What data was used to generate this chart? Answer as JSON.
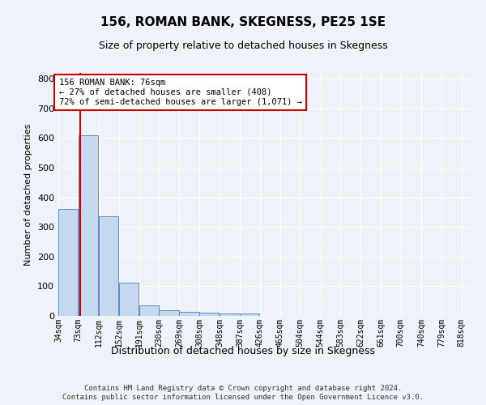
{
  "title": "156, ROMAN BANK, SKEGNESS, PE25 1SE",
  "subtitle": "Size of property relative to detached houses in Skegness",
  "xlabel": "Distribution of detached houses by size in Skegness",
  "ylabel": "Number of detached properties",
  "footer_line1": "Contains HM Land Registry data © Crown copyright and database right 2024.",
  "footer_line2": "Contains public sector information licensed under the Open Government Licence v3.0.",
  "bin_labels": [
    "34sqm",
    "73sqm",
    "112sqm",
    "152sqm",
    "191sqm",
    "230sqm",
    "269sqm",
    "308sqm",
    "348sqm",
    "387sqm",
    "426sqm",
    "465sqm",
    "504sqm",
    "544sqm",
    "583sqm",
    "622sqm",
    "661sqm",
    "700sqm",
    "740sqm",
    "779sqm",
    "818sqm"
  ],
  "bar_values": [
    360,
    610,
    335,
    113,
    36,
    20,
    15,
    10,
    8,
    8,
    0,
    0,
    0,
    0,
    0,
    0,
    0,
    0,
    0,
    0
  ],
  "bar_color": "#c5d8f0",
  "bar_edge_color": "#5a8fc2",
  "property_size": 76,
  "vline_color": "#cc0000",
  "ylim": [
    0,
    820
  ],
  "yticks": [
    0,
    100,
    200,
    300,
    400,
    500,
    600,
    700,
    800
  ],
  "annotation_text": "156 ROMAN BANK: 76sqm\n← 27% of detached houses are smaller (408)\n72% of semi-detached houses are larger (1,071) →",
  "annotation_box_color": "#ffffff",
  "annotation_box_edge": "#cc0000",
  "bg_color": "#eef2f9",
  "grid_color": "#ffffff",
  "bin_width": 39
}
